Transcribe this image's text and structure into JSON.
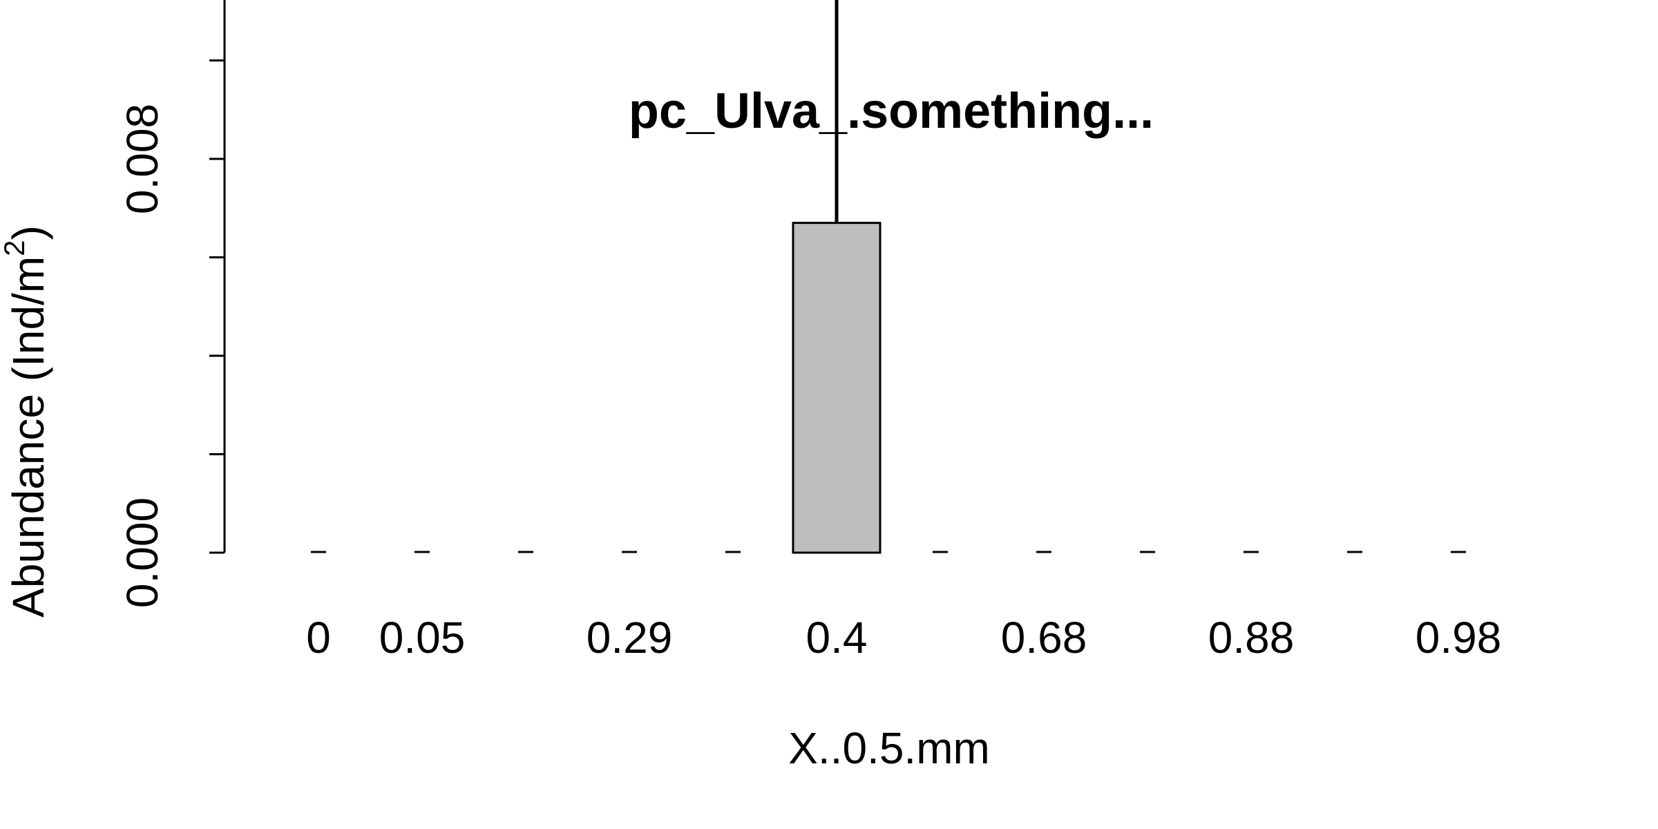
{
  "chart_data": {
    "type": "bar",
    "title": "pc_Ulva_.something...",
    "xlabel": "X..0.5.mm",
    "ylabel_main": "Abundance (Ind/m",
    "ylabel_sup": "2",
    "ylabel_close": ")",
    "categories": [
      "0",
      "0.05",
      "",
      "0.29",
      "",
      "0.4",
      "",
      "0.68",
      "",
      "0.88",
      "",
      "0.98"
    ],
    "values": [
      0,
      0,
      0,
      0,
      0,
      0.0067,
      0,
      0,
      0,
      0,
      0,
      0
    ],
    "error_upper": [
      0,
      0,
      0,
      0,
      0,
      0.0133,
      0,
      0,
      0,
      0,
      0,
      0
    ],
    "y_ticks": [
      0.0,
      0.002,
      0.004,
      0.006,
      0.008,
      0.01,
      0.012
    ],
    "y_tick_labels": [
      {
        "value": 0.0,
        "label": "0.000"
      },
      {
        "value": 0.004,
        "label": ""
      },
      {
        "value": 0.008,
        "label": "0.008"
      }
    ],
    "ylim": [
      0,
      0.0135
    ],
    "bar_color": "#bebebe",
    "grid": false
  }
}
